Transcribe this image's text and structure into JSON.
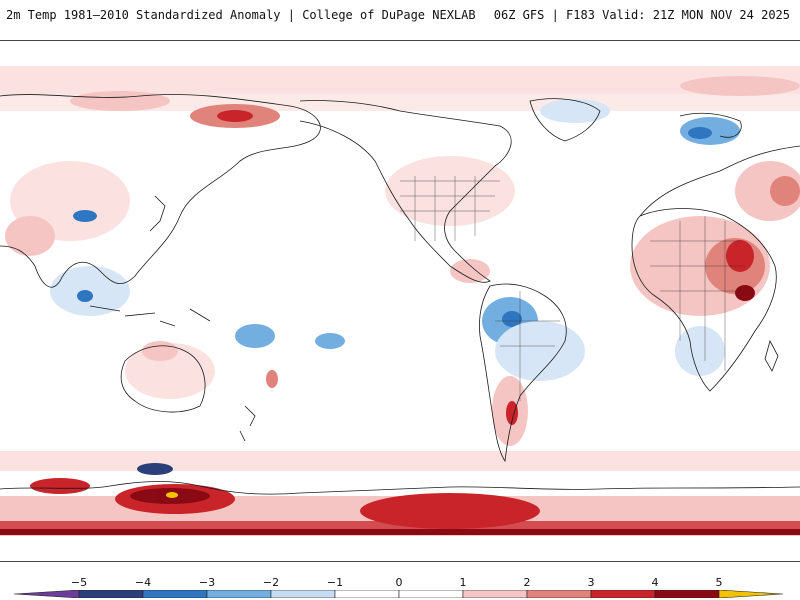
{
  "header": {
    "title": "2m Temp 1981–2010 Standardized Anomaly | College of DuPage NEXLAB",
    "run_info": "06Z GFS | F183 Valid: 21Z MON NOV 24 2025"
  },
  "colorbar": {
    "labels": [
      "−5",
      "−4",
      "−3",
      "−2",
      "−1",
      "0",
      "1",
      "2",
      "3",
      "4",
      "5"
    ],
    "colors": [
      "#6a3d9a",
      "#2b3f7a",
      "#2f76c0",
      "#73aee0",
      "#c6dcf2",
      "#ffffff",
      "#ffffff",
      "#f4c5c2",
      "#e0837b",
      "#c8242a",
      "#8a0a14",
      "#f2c100"
    ]
  },
  "map": {
    "colors": {
      "very_light_red": "#fbe1e0",
      "light_red": "#f4c5c2",
      "mid_red": "#e0837b",
      "red": "#c8242a",
      "dark_red": "#8a0a14",
      "light_blue": "#d6e6f6",
      "mid_blue": "#73aee0",
      "blue": "#2f76c0",
      "navy": "#2b3f7a",
      "yellow": "#f2c100",
      "coast": "#1a1a1a"
    }
  }
}
